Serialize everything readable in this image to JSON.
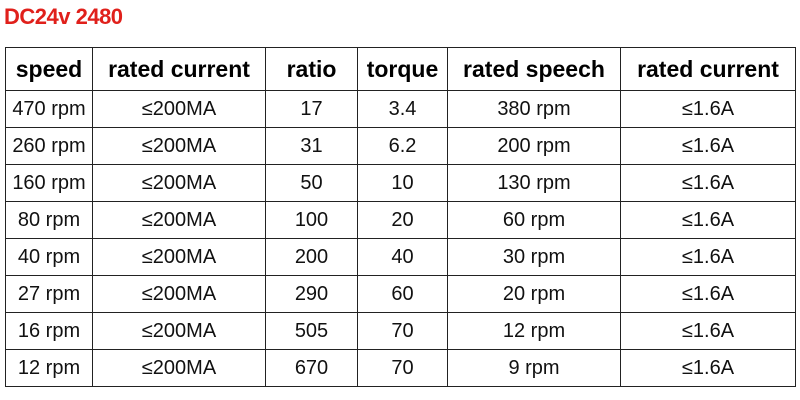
{
  "title": "DC24v 2480",
  "table": {
    "header": [
      "speed",
      "rated current",
      "ratio",
      "torque",
      "rated speech",
      "rated current"
    ],
    "rows": [
      [
        "470 rpm",
        "≤200MA",
        "17",
        "3.4",
        "380 rpm",
        "≤1.6A"
      ],
      [
        "260 rpm",
        "≤200MA",
        "31",
        "6.2",
        "200 rpm",
        "≤1.6A"
      ],
      [
        "160 rpm",
        "≤200MA",
        "50",
        "10",
        "130 rpm",
        "≤1.6A"
      ],
      [
        "80 rpm",
        "≤200MA",
        "100",
        "20",
        "60 rpm",
        "≤1.6A"
      ],
      [
        "40 rpm",
        "≤200MA",
        "200",
        "40",
        "30 rpm",
        "≤1.6A"
      ],
      [
        "27 rpm",
        "≤200MA",
        "290",
        "60",
        "20 rpm",
        "≤1.6A"
      ],
      [
        "16 rpm",
        "≤200MA",
        "505",
        "70",
        "12 rpm",
        "≤1.6A"
      ],
      [
        "12 rpm",
        "≤200MA",
        "670",
        "70",
        "9 rpm",
        "≤1.6A"
      ]
    ]
  }
}
